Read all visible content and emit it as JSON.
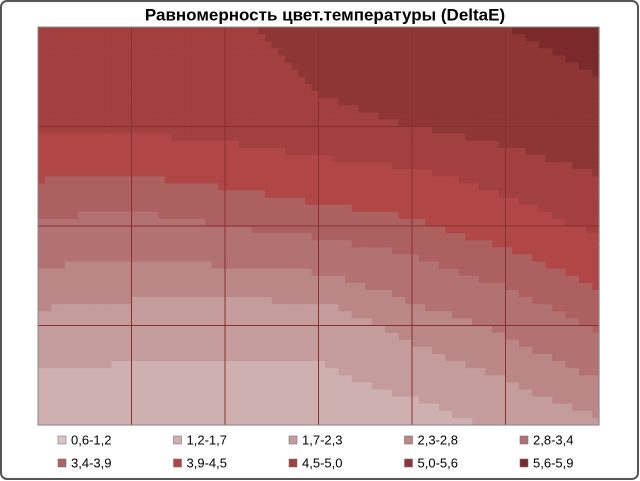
{
  "chart_data": {
    "type": "contour",
    "title": "Равномерность цвет.температуры (DeltaE)",
    "z": [
      [
        5.0,
        5.0,
        4.9,
        5.2,
        5.4,
        5.6,
        5.8
      ],
      [
        4.6,
        4.6,
        4.7,
        4.9,
        5.0,
        5.2,
        5.4
      ],
      [
        3.3,
        3.2,
        3.4,
        3.6,
        3.8,
        4.2,
        4.6
      ],
      [
        2.1,
        2.0,
        1.9,
        1.9,
        2.5,
        2.9,
        3.5
      ],
      [
        1.2,
        1.2,
        1.3,
        1.3,
        1.4,
        1.8,
        2.2
      ]
    ],
    "bands": [
      {
        "label": "0,6-1,2",
        "range": [
          0.6,
          1.2
        ],
        "color": "#dcc6c6"
      },
      {
        "label": "1,2-1,7",
        "range": [
          1.2,
          1.7
        ],
        "color": "#ceb0b0"
      },
      {
        "label": "1,7-2,3",
        "range": [
          1.7,
          2.3
        ],
        "color": "#c49c9c"
      },
      {
        "label": "2,3-2,8",
        "range": [
          2.3,
          2.8
        ],
        "color": "#ba8686"
      },
      {
        "label": "2,8-3,4",
        "range": [
          2.8,
          3.4
        ],
        "color": "#b27272"
      },
      {
        "label": "3,4-3,9",
        "range": [
          3.4,
          3.9
        ],
        "color": "#ad6060"
      },
      {
        "label": "3,9-4,5",
        "range": [
          3.9,
          4.5
        ],
        "color": "#b04646"
      },
      {
        "label": "4,5-5,0",
        "range": [
          4.5,
          5.0
        ],
        "color": "#a23f3f"
      },
      {
        "label": "5,0-5,6",
        "range": [
          5.0,
          5.6
        ],
        "color": "#8e3535"
      },
      {
        "label": "5,6-5,9",
        "range": [
          5.6,
          5.9
        ],
        "color": "#7a2a2a"
      }
    ],
    "grid": true
  }
}
